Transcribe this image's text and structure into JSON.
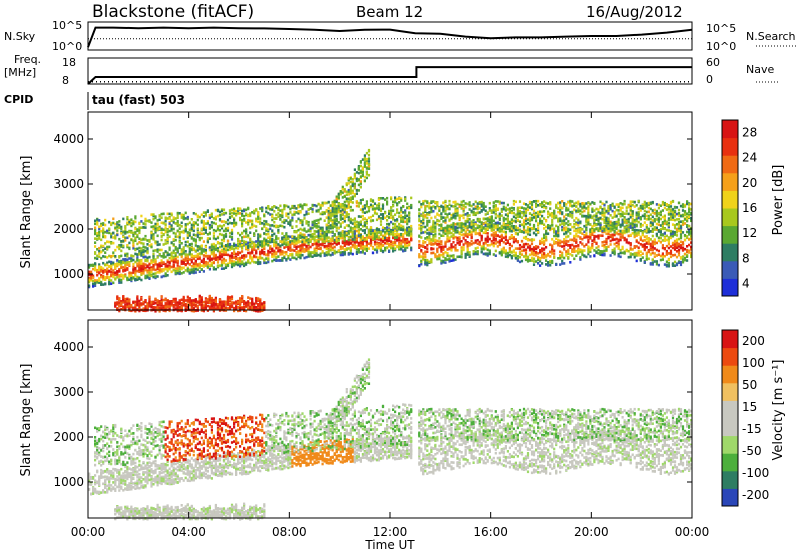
{
  "header": {
    "station": "Blackstone (fitACF)",
    "beam": "Beam 12",
    "date": "16/Aug/2012",
    "cpid_label": "CPID",
    "cpid_text": "tau (fast) 503"
  },
  "colors": {
    "power": [
      "#1e2fd8",
      "#3a5bb7",
      "#2e7d63",
      "#5aa832",
      "#a8c81e",
      "#f0d21a",
      "#f5a01a",
      "#f06a14",
      "#e83010",
      "#d81414"
    ],
    "velocity": [
      "#d81414",
      "#ec4a10",
      "#f08a1a",
      "#f0c060",
      "#c8c8c0",
      "#c8c8c0",
      "#9fd86a",
      "#4caf3c",
      "#2e7d63",
      "#2a46b8"
    ]
  },
  "chart_data": [
    {
      "type": "line",
      "name": "noise-panel",
      "left_label": "N.Sky",
      "right_label": "N.Search",
      "left_ticks": [
        "10^5",
        "10^0"
      ],
      "right_ticks": [
        "10^5",
        "10^0"
      ],
      "xlim": [
        0,
        24
      ],
      "series": [
        {
          "name": "N.Sky",
          "x": [
            0,
            0.3,
            1,
            2,
            3,
            4,
            5,
            6,
            7,
            8,
            9,
            10,
            11,
            12,
            13,
            14,
            15,
            16,
            17,
            18,
            19,
            20,
            21,
            22,
            23,
            24
          ],
          "y": [
            0.1,
            0.8,
            0.8,
            0.78,
            0.8,
            0.78,
            0.8,
            0.78,
            0.77,
            0.75,
            0.72,
            0.68,
            0.72,
            0.73,
            0.6,
            0.58,
            0.48,
            0.42,
            0.45,
            0.45,
            0.48,
            0.5,
            0.5,
            0.55,
            0.62,
            0.72
          ]
        },
        {
          "name": "N.Search",
          "x": [
            0,
            24
          ],
          "y": [
            0.4,
            0.4
          ]
        }
      ]
    },
    {
      "type": "line",
      "name": "frequency-panel",
      "left_label": "Freq.",
      "left_unit": "[MHz]",
      "right_label": "Nave",
      "left_ticks": [
        "18",
        "8"
      ],
      "right_ticks": [
        "60",
        "0"
      ],
      "xlim": [
        0,
        24
      ],
      "series": [
        {
          "name": "Freq.",
          "x": [
            0,
            0.3,
            13.05,
            13.05,
            24
          ],
          "y": [
            8,
            10.7,
            10.7,
            14.5,
            14.5
          ]
        },
        {
          "name": "Nave",
          "x": [
            0,
            24
          ],
          "y": [
            5,
            5
          ]
        }
      ]
    },
    {
      "type": "heatmap",
      "name": "power-panel",
      "ylabel": "Slant Range [km]",
      "yticks": [
        1000,
        2000,
        3000,
        4000
      ],
      "ylim": [
        200,
        4600
      ],
      "xlim": [
        0,
        24
      ],
      "colorbar": {
        "label": "Power [dB]",
        "ticks": [
          "4",
          "8",
          "12",
          "16",
          "20",
          "24",
          "28"
        ]
      }
    },
    {
      "type": "heatmap",
      "name": "velocity-panel",
      "ylabel": "Slant Range [km]",
      "yticks": [
        1000,
        2000,
        3000,
        4000
      ],
      "ylim": [
        200,
        4600
      ],
      "xlim": [
        0,
        24
      ],
      "xlabel": "Time UT",
      "xticks": [
        "00:00",
        "04:00",
        "08:00",
        "12:00",
        "16:00",
        "20:00",
        "00:00"
      ],
      "colorbar": {
        "label": "Velocity [m s⁻¹]",
        "ticks": [
          "200",
          "100",
          "50",
          "15",
          "-15",
          "-50",
          "-100",
          "-200"
        ]
      }
    }
  ]
}
